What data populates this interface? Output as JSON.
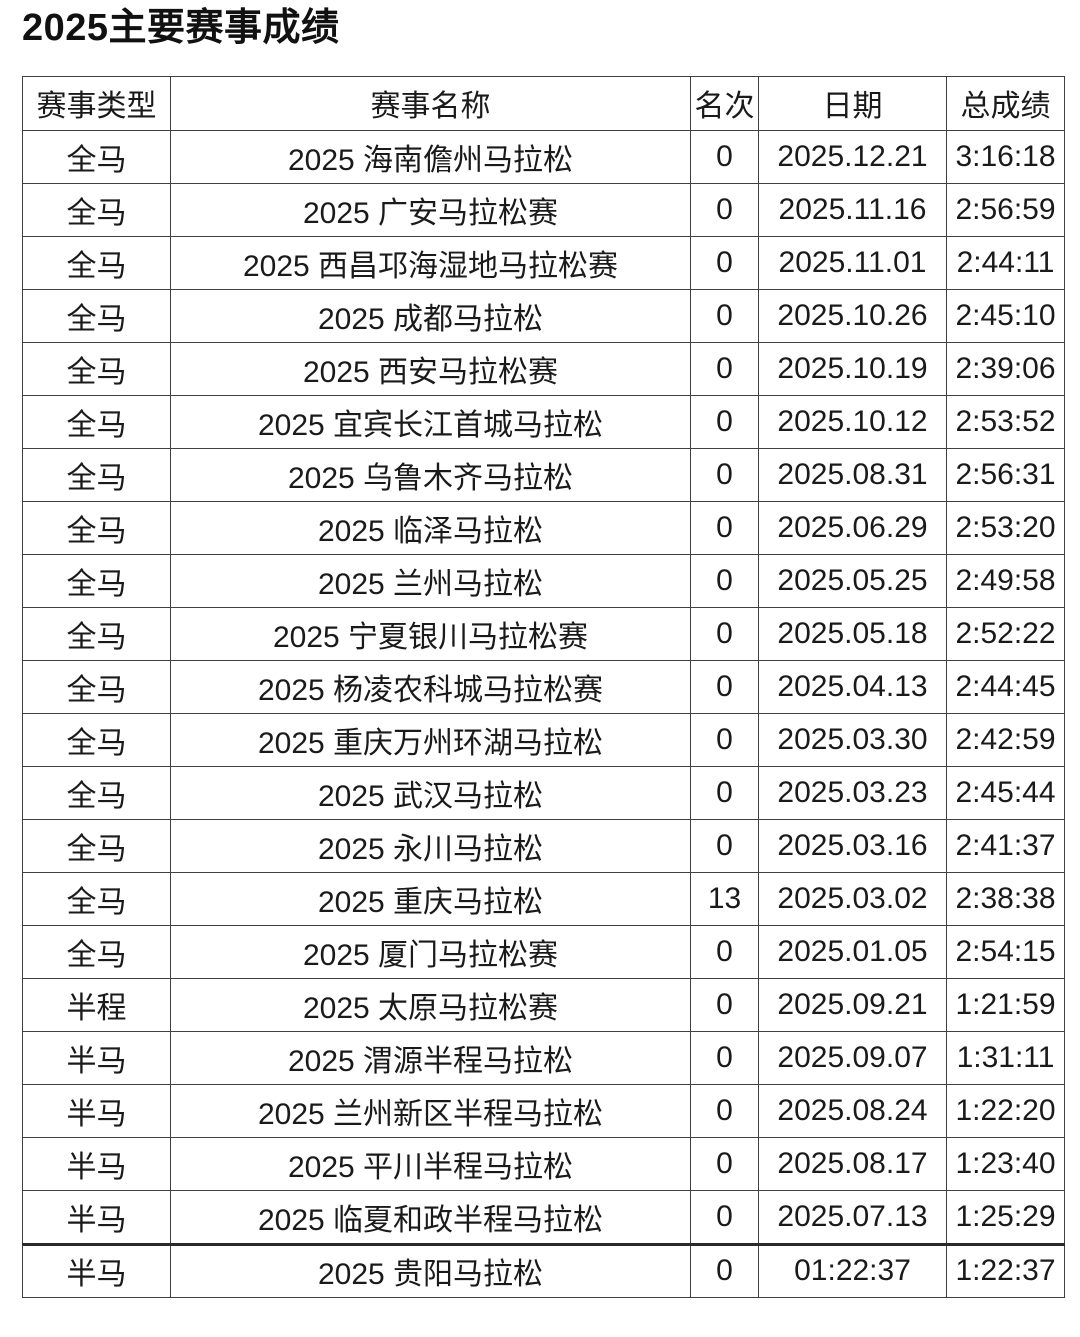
{
  "page": {
    "title": "2025主要赛事成绩"
  },
  "table": {
    "columns": [
      "赛事类型",
      "赛事名称",
      "名次",
      "日期",
      "总成绩"
    ],
    "rows": [
      {
        "type": "全马",
        "name": "2025 海南儋州马拉松",
        "rank": "0",
        "date": "2025.12.21",
        "result": "3:16:18"
      },
      {
        "type": "全马",
        "name": "2025 广安马拉松赛",
        "rank": "0",
        "date": "2025.11.16",
        "result": "2:56:59"
      },
      {
        "type": "全马",
        "name": "2025 西昌邛海湿地马拉松赛",
        "rank": "0",
        "date": "2025.11.01",
        "result": "2:44:11"
      },
      {
        "type": "全马",
        "name": "2025 成都马拉松",
        "rank": "0",
        "date": "2025.10.26",
        "result": "2:45:10"
      },
      {
        "type": "全马",
        "name": "2025 西安马拉松赛",
        "rank": "0",
        "date": "2025.10.19",
        "result": "2:39:06"
      },
      {
        "type": "全马",
        "name": "2025 宜宾长江首城马拉松",
        "rank": "0",
        "date": "2025.10.12",
        "result": "2:53:52"
      },
      {
        "type": "全马",
        "name": "2025 乌鲁木齐马拉松",
        "rank": "0",
        "date": "2025.08.31",
        "result": "2:56:31"
      },
      {
        "type": "全马",
        "name": "2025 临泽马拉松",
        "rank": "0",
        "date": "2025.06.29",
        "result": "2:53:20"
      },
      {
        "type": "全马",
        "name": "2025 兰州马拉松",
        "rank": "0",
        "date": "2025.05.25",
        "result": "2:49:58"
      },
      {
        "type": "全马",
        "name": "2025 宁夏银川马拉松赛",
        "rank": "0",
        "date": "2025.05.18",
        "result": "2:52:22"
      },
      {
        "type": "全马",
        "name": "2025 杨凌农科城马拉松赛",
        "rank": "0",
        "date": "2025.04.13",
        "result": "2:44:45"
      },
      {
        "type": "全马",
        "name": "2025 重庆万州环湖马拉松",
        "rank": "0",
        "date": "2025.03.30",
        "result": "2:42:59"
      },
      {
        "type": "全马",
        "name": "2025 武汉马拉松",
        "rank": "0",
        "date": "2025.03.23",
        "result": "2:45:44"
      },
      {
        "type": "全马",
        "name": "2025 永川马拉松",
        "rank": "0",
        "date": "2025.03.16",
        "result": "2:41:37"
      },
      {
        "type": "全马",
        "name": "2025 重庆马拉松",
        "rank": "13",
        "date": "2025.03.02",
        "result": "2:38:38"
      },
      {
        "type": "全马",
        "name": "2025 厦门马拉松赛",
        "rank": "0",
        "date": "2025.01.05",
        "result": "2:54:15"
      },
      {
        "type": "半程",
        "name": "2025 太原马拉松赛",
        "rank": "0",
        "date": "2025.09.21",
        "result": "1:21:59"
      },
      {
        "type": "半马",
        "name": "2025 渭源半程马拉松",
        "rank": "0",
        "date": "2025.09.07",
        "result": "1:31:11"
      },
      {
        "type": "半马",
        "name": "2025 兰州新区半程马拉松",
        "rank": "0",
        "date": "2025.08.24",
        "result": "1:22:20"
      },
      {
        "type": "半马",
        "name": "2025 平川半程马拉松",
        "rank": "0",
        "date": "2025.08.17",
        "result": "1:23:40"
      },
      {
        "type": "半马",
        "name": "2025 临夏和政半程马拉松",
        "rank": "0",
        "date": "2025.07.13",
        "result": "1:25:29"
      },
      {
        "type": "半马",
        "name": "2025 贵阳马拉松",
        "rank": "0",
        "date": "01:22:37",
        "result": "1:22:37"
      }
    ]
  }
}
